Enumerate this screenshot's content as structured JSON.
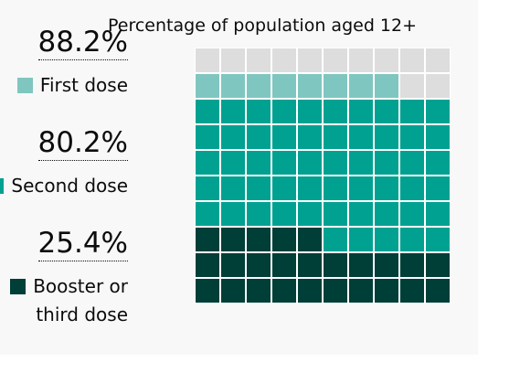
{
  "chart_data": {
    "type": "waffle",
    "title": "Percentage of population aged 12+",
    "grid": {
      "rows": 10,
      "cols": 10
    },
    "series": [
      {
        "name": "First dose",
        "value": 88.2,
        "label": "88.2%",
        "color": "#80c6c0"
      },
      {
        "name": "Second dose",
        "value": 80.2,
        "label": "80.2%",
        "color": "#00a191"
      },
      {
        "name": "Booster or third dose",
        "value": 25.4,
        "label": "25.4%",
        "color": "#003e38"
      }
    ],
    "empty_color": "#dddddd"
  },
  "legend": {
    "first": "First dose",
    "second": "Second dose",
    "booster_line1": "Booster or",
    "booster_line2": "third dose"
  }
}
